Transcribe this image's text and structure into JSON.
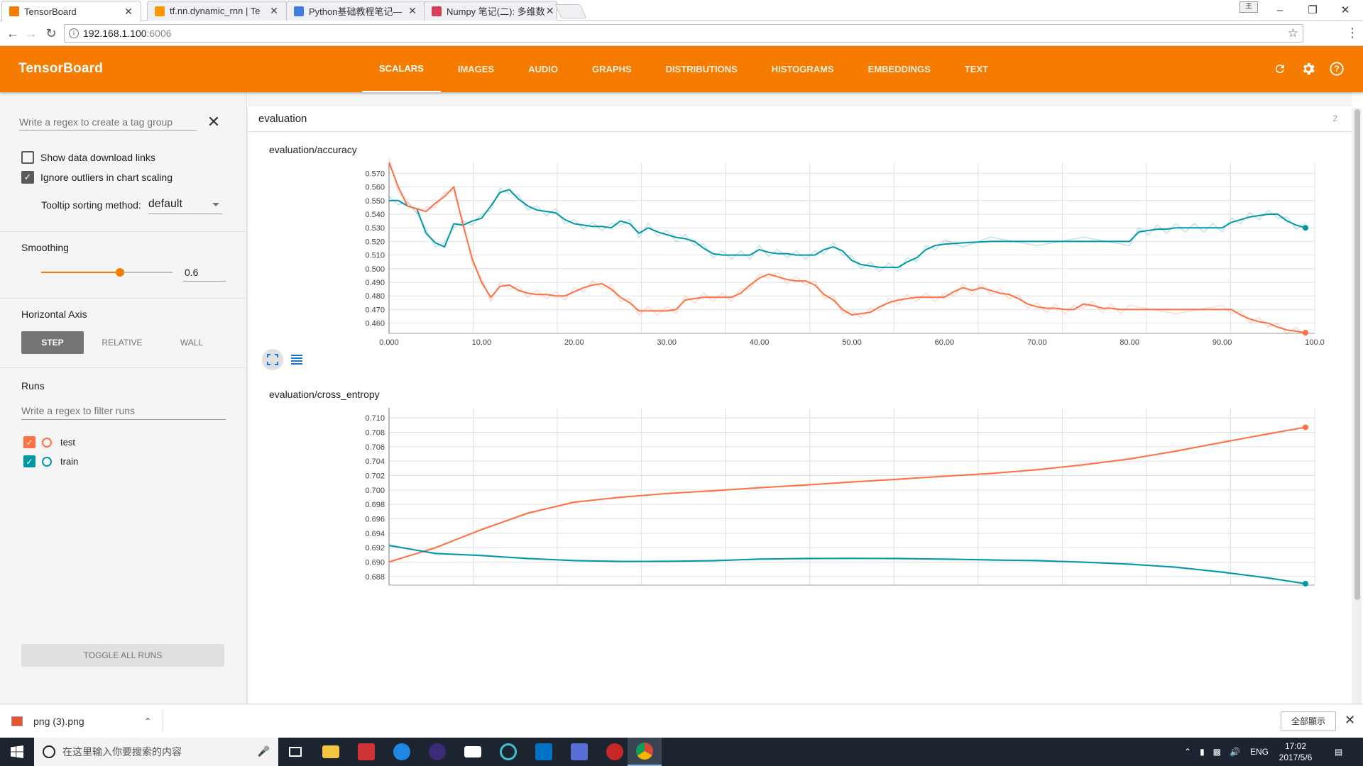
{
  "browser": {
    "tabs": [
      {
        "title": "TensorBoard",
        "active": true,
        "favicon_color": "#f57c00"
      },
      {
        "title": "tf.nn.dynamic_rnn  |  Te",
        "active": false,
        "favicon_color": "#ff9800"
      },
      {
        "title": "Python基础教程笔记—",
        "active": false,
        "favicon_color": "#3f7fd9"
      },
      {
        "title": "Numpy 笔记(二): 多维数",
        "active": false,
        "favicon_color": "#d23f57"
      }
    ],
    "address_host": "192.168.1.100",
    "address_port": ":6006",
    "user_badge": "王"
  },
  "header": {
    "title": "TensorBoard",
    "tabs": [
      "SCALARS",
      "IMAGES",
      "AUDIO",
      "GRAPHS",
      "DISTRIBUTIONS",
      "HISTOGRAMS",
      "EMBEDDINGS",
      "TEXT"
    ],
    "active_tab": "SCALARS",
    "accent_color": "#f57c00"
  },
  "sidebar": {
    "tag_regex_placeholder": "Write a regex to create a tag group",
    "show_download_label": "Show data download links",
    "show_download_checked": false,
    "ignore_outliers_label": "Ignore outliers in chart scaling",
    "ignore_outliers_checked": true,
    "tooltip_label": "Tooltip sorting method:",
    "tooltip_value": "default",
    "smoothing_label": "Smoothing",
    "smoothing_value": "0.6",
    "smoothing_fraction": 0.6,
    "horizontal_axis_label": "Horizontal Axis",
    "axis_options": [
      "STEP",
      "RELATIVE",
      "WALL"
    ],
    "axis_selected": "STEP",
    "runs_label": "Runs",
    "runs_filter_placeholder": "Write a regex to filter runs",
    "runs": [
      {
        "name": "test",
        "color": "#ff7043",
        "checked": true
      },
      {
        "name": "train",
        "color": "#0097a7",
        "checked": true
      }
    ],
    "toggle_all_label": "TOGGLE ALL RUNS"
  },
  "main": {
    "group_name": "evaluation",
    "group_count": "2",
    "charts": [
      {
        "title": "evaluation/accuracy"
      },
      {
        "title": "evaluation/cross_entropy"
      }
    ]
  },
  "chart_data": [
    {
      "type": "line",
      "title": "evaluation/accuracy",
      "xlabel": "",
      "ylabel": "",
      "xlim": [
        0,
        100
      ],
      "ylim": [
        0.4525,
        0.5775
      ],
      "x_ticks": [
        "0.000",
        "10.00",
        "20.00",
        "30.00",
        "40.00",
        "50.00",
        "60.00",
        "70.00",
        "80.00",
        "90.00",
        "100.0"
      ],
      "y_ticks": [
        "0.460",
        "0.470",
        "0.480",
        "0.490",
        "0.500",
        "0.510",
        "0.520",
        "0.530",
        "0.540",
        "0.550",
        "0.560",
        "0.570"
      ],
      "grid": true,
      "series": [
        {
          "name": "train",
          "color": "#0097a7",
          "x": [
            0,
            1,
            2,
            3,
            4,
            5,
            6,
            7,
            8,
            9,
            10,
            11,
            12,
            13,
            14,
            15,
            16,
            17,
            18,
            19,
            20,
            21,
            22,
            23,
            24,
            25,
            26,
            27,
            28,
            29,
            30,
            31,
            32,
            33,
            34,
            35,
            36,
            37,
            38,
            39,
            40,
            41,
            42,
            43,
            44,
            45,
            46,
            47,
            48,
            49,
            50,
            51,
            52,
            53,
            54,
            55,
            56,
            57,
            58,
            59,
            60,
            62,
            65,
            70,
            75,
            80,
            81,
            82,
            83,
            84,
            85,
            86,
            87,
            88,
            89,
            90,
            91,
            92,
            93,
            94,
            95,
            96,
            97,
            98,
            99
          ],
          "y": [
            0.55,
            0.55,
            0.546,
            0.544,
            0.526,
            0.519,
            0.516,
            0.533,
            0.532,
            0.535,
            0.537,
            0.546,
            0.556,
            0.558,
            0.551,
            0.546,
            0.543,
            0.542,
            0.541,
            0.536,
            0.533,
            0.532,
            0.531,
            0.531,
            0.53,
            0.535,
            0.533,
            0.526,
            0.53,
            0.527,
            0.525,
            0.523,
            0.522,
            0.52,
            0.515,
            0.511,
            0.51,
            0.51,
            0.51,
            0.51,
            0.514,
            0.512,
            0.511,
            0.511,
            0.51,
            0.51,
            0.51,
            0.514,
            0.516,
            0.513,
            0.506,
            0.503,
            0.502,
            0.501,
            0.501,
            0.501,
            0.505,
            0.508,
            0.514,
            0.517,
            0.518,
            0.519,
            0.52,
            0.52,
            0.52,
            0.52,
            0.527,
            0.528,
            0.529,
            0.529,
            0.53,
            0.53,
            0.53,
            0.53,
            0.53,
            0.53,
            0.534,
            0.536,
            0.538,
            0.539,
            0.54,
            0.54,
            0.535,
            0.532,
            0.53
          ]
        },
        {
          "name": "test",
          "color": "#ff7043",
          "x": [
            0,
            1,
            2,
            3,
            4,
            5,
            6,
            7,
            8,
            9,
            10,
            11,
            12,
            13,
            14,
            15,
            16,
            17,
            18,
            19,
            20,
            21,
            22,
            23,
            24,
            25,
            26,
            27,
            28,
            29,
            30,
            31,
            32,
            33,
            34,
            35,
            36,
            37,
            38,
            39,
            40,
            41,
            42,
            43,
            44,
            45,
            46,
            47,
            48,
            49,
            50,
            51,
            52,
            53,
            54,
            55,
            56,
            57,
            58,
            59,
            60,
            61,
            62,
            63,
            64,
            65,
            66,
            67,
            68,
            69,
            70,
            71,
            72,
            73,
            74,
            75,
            76,
            77,
            78,
            79,
            80,
            85,
            90,
            91,
            92,
            93,
            94,
            95,
            96,
            97,
            98,
            99
          ],
          "y": [
            0.578,
            0.56,
            0.546,
            0.544,
            0.542,
            0.548,
            0.553,
            0.56,
            0.532,
            0.507,
            0.49,
            0.479,
            0.487,
            0.488,
            0.484,
            0.482,
            0.481,
            0.481,
            0.48,
            0.48,
            0.483,
            0.486,
            0.488,
            0.489,
            0.485,
            0.479,
            0.475,
            0.469,
            0.469,
            0.469,
            0.469,
            0.47,
            0.477,
            0.478,
            0.479,
            0.479,
            0.479,
            0.479,
            0.482,
            0.488,
            0.493,
            0.496,
            0.494,
            0.492,
            0.491,
            0.491,
            0.488,
            0.481,
            0.477,
            0.47,
            0.466,
            0.467,
            0.468,
            0.472,
            0.475,
            0.477,
            0.478,
            0.479,
            0.479,
            0.479,
            0.479,
            0.483,
            0.486,
            0.484,
            0.486,
            0.484,
            0.482,
            0.481,
            0.478,
            0.474,
            0.472,
            0.471,
            0.471,
            0.47,
            0.47,
            0.474,
            0.473,
            0.471,
            0.471,
            0.47,
            0.47,
            0.47,
            0.47,
            0.47,
            0.466,
            0.463,
            0.461,
            0.46,
            0.457,
            0.455,
            0.454,
            0.453
          ]
        }
      ]
    },
    {
      "type": "line",
      "title": "evaluation/cross_entropy",
      "xlabel": "",
      "ylabel": "",
      "xlim": [
        0,
        100
      ],
      "ylim": [
        0.6868,
        0.7114
      ],
      "y_ticks": [
        "0.688",
        "0.690",
        "0.692",
        "0.694",
        "0.696",
        "0.698",
        "0.700",
        "0.702",
        "0.704",
        "0.706",
        "0.708",
        "0.710"
      ],
      "grid": true,
      "series": [
        {
          "name": "test",
          "color": "#ff7043",
          "x": [
            0,
            5,
            10,
            15,
            20,
            25,
            30,
            35,
            40,
            45,
            50,
            55,
            60,
            65,
            70,
            75,
            80,
            85,
            90,
            95,
            99
          ],
          "y": [
            0.69,
            0.692,
            0.6945,
            0.6968,
            0.6983,
            0.699,
            0.6995,
            0.6999,
            0.7003,
            0.7007,
            0.7011,
            0.7015,
            0.7019,
            0.7023,
            0.7028,
            0.7035,
            0.7043,
            0.7054,
            0.7066,
            0.7078,
            0.7087
          ]
        },
        {
          "name": "train",
          "color": "#0097a7",
          "x": [
            0,
            5,
            10,
            15,
            20,
            25,
            30,
            35,
            40,
            45,
            50,
            55,
            60,
            65,
            70,
            75,
            80,
            85,
            90,
            95,
            99
          ],
          "y": [
            0.6923,
            0.6912,
            0.6909,
            0.6905,
            0.6902,
            0.6901,
            0.6901,
            0.6902,
            0.6904,
            0.6905,
            0.6905,
            0.6905,
            0.6904,
            0.6903,
            0.6902,
            0.69,
            0.6897,
            0.6893,
            0.6886,
            0.6878,
            0.687
          ]
        }
      ]
    }
  ],
  "downloads": {
    "file_name": "png (3).png",
    "show_all_label": "全部顯示"
  },
  "taskbar": {
    "search_placeholder": "在这里输入你要搜索的内容",
    "lang": "ENG",
    "time": "17:02",
    "date": "2017/5/6"
  }
}
